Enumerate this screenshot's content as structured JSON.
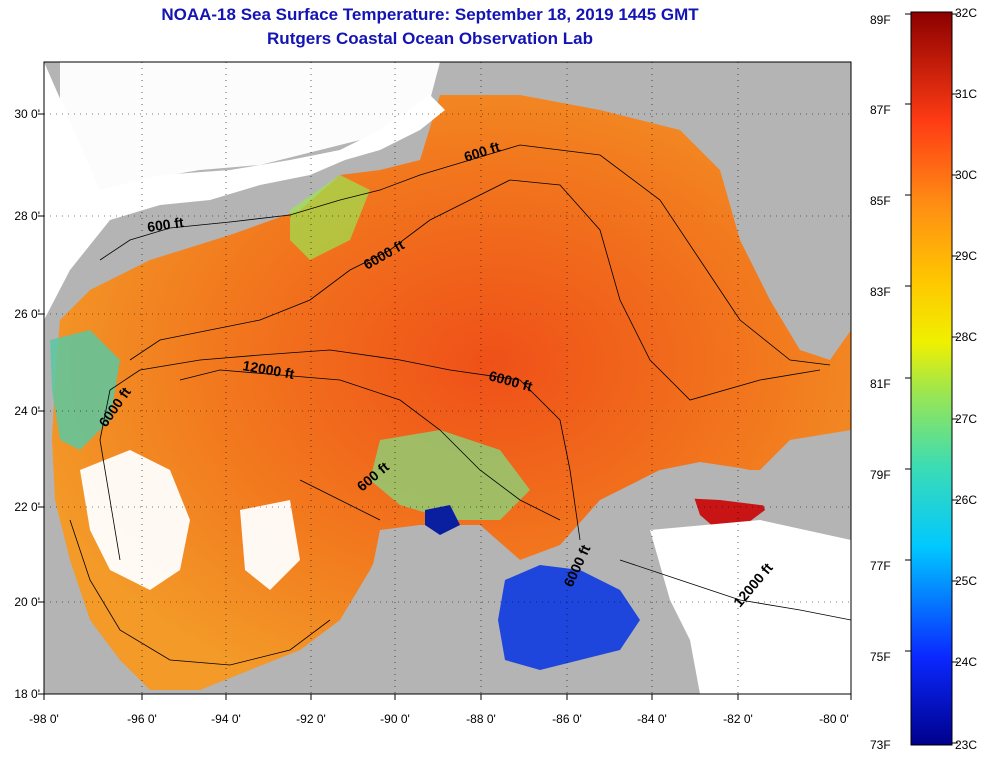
{
  "title": "NOAA-18 Sea Surface Temperature:  September 18, 2019 1445 GMT",
  "subtitle": "Rutgers Coastal Ocean Observation Lab",
  "latitude_labels": [
    "30 0'",
    "28 0'",
    "26 0'",
    "24 0'",
    "22 0'",
    "20 0'",
    "18 0'"
  ],
  "longitude_labels": [
    "-98 0'",
    "-96 0'",
    "-94 0'",
    "-92 0'",
    "-90 0'",
    "-88 0'",
    "-86 0'",
    "-84 0'",
    "-82 0'",
    "-80 0'"
  ],
  "depth_contour_labels": [
    "600 ft",
    "600 ft",
    "6000 ft",
    "12000 ft",
    "6000 ft",
    "6000 ft",
    "600 ft",
    "6000 ft",
    "12000 ft"
  ],
  "colorbar": {
    "fahrenheit_labels": [
      "89F",
      "87F",
      "85F",
      "83F",
      "81F",
      "79F",
      "77F",
      "75F",
      "73F"
    ],
    "celsius_labels": [
      "32C",
      "31C",
      "30C",
      "29C",
      "28C",
      "27C",
      "26C",
      "25C",
      "24C",
      "23C"
    ],
    "min_c": 23,
    "max_c": 32
  },
  "colors": {
    "title": "#1414b4",
    "land": "#b4b4b4",
    "cloud": "#ffffff",
    "warm": "#f06a14",
    "hot": "#c81414",
    "cool": "#5ac8a0",
    "cold": "#1428c8"
  }
}
